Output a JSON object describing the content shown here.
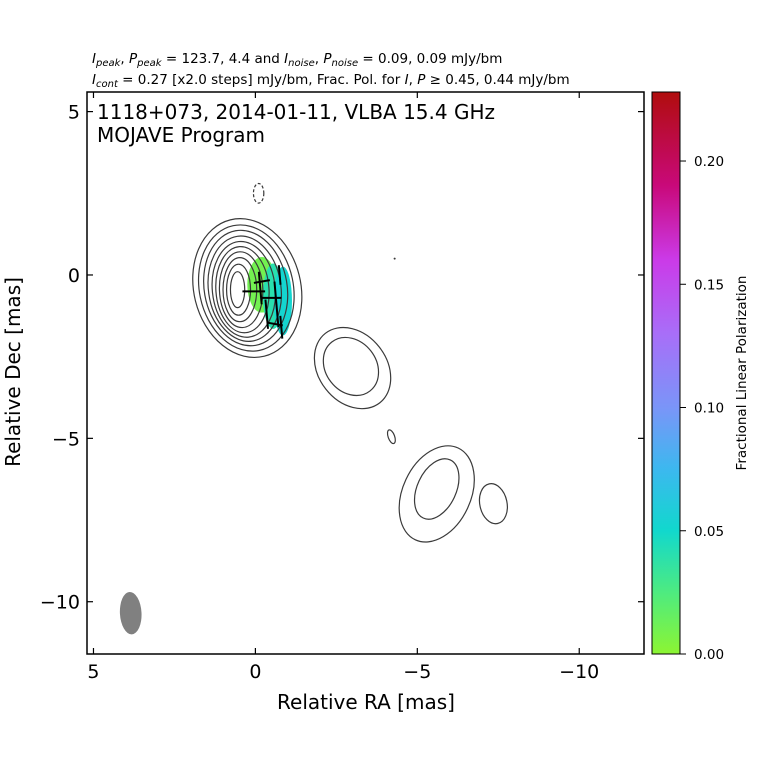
{
  "header": {
    "line1": {
      "i_peak_sym": "I",
      "i_peak_sub": "peak",
      "p_peak_sym": "P",
      "p_peak_sub": "peak",
      "peak_vals": "= 123.7, 4.4 and",
      "i_noise_sym": "I",
      "i_noise_sub": "noise",
      "p_noise_sym": "P",
      "p_noise_sub": "noise",
      "noise_vals": "= 0.09, 0.09 mJy/bm"
    },
    "line2": {
      "i_cont_sym": "I",
      "i_cont_sub": "cont",
      "cont_text": "= 0.27 [x2.0 steps] mJy/bm, Frac. Pol. for",
      "i_sym": "I",
      "p_sym": "P",
      "thresh_text": "≥ 0.45, 0.44 mJy/bm"
    }
  },
  "inset": {
    "line1": "1118+073, 2014-01-11, VLBA 15.4 GHz",
    "line2": "MOJAVE Program"
  },
  "chart_data": {
    "type": "contour",
    "xlabel": "Relative RA [mas]",
    "ylabel": "Relative Dec [mas]",
    "xlim": [
      5.2,
      -12.0
    ],
    "ylim": [
      -11.6,
      5.6
    ],
    "xticks": [
      5,
      0,
      -5,
      -10
    ],
    "xtick_labels": [
      "5",
      "0",
      "−5",
      "−10"
    ],
    "yticks": [
      5,
      0,
      -5,
      -10
    ],
    "ytick_labels": [
      "5",
      "0",
      "−5",
      "−10"
    ],
    "contour_color": "#3a3a3a",
    "contours": [
      {
        "id": "c-core-1",
        "cx": 0.25,
        "cy": -0.4,
        "rx": 1.65,
        "ry": 2.15,
        "rot": -14
      },
      {
        "id": "c-core-2",
        "cx": 0.28,
        "cy": -0.4,
        "rx": 1.45,
        "ry": 1.95,
        "rot": -12
      },
      {
        "id": "c-core-3",
        "cx": 0.3,
        "cy": -0.4,
        "rx": 1.28,
        "ry": 1.78,
        "rot": -10
      },
      {
        "id": "c-core-4",
        "cx": 0.33,
        "cy": -0.42,
        "rx": 1.12,
        "ry": 1.62,
        "rot": -8
      },
      {
        "id": "c-core-5",
        "cx": 0.36,
        "cy": -0.44,
        "rx": 0.97,
        "ry": 1.47,
        "rot": -6
      },
      {
        "id": "c-core-6",
        "cx": 0.4,
        "cy": -0.45,
        "rx": 0.82,
        "ry": 1.32,
        "rot": -4
      },
      {
        "id": "c-core-7",
        "cx": 0.44,
        "cy": -0.45,
        "rx": 0.67,
        "ry": 1.16,
        "rot": -2
      },
      {
        "id": "c-core-8",
        "cx": 0.48,
        "cy": -0.45,
        "rx": 0.52,
        "ry": 0.98,
        "rot": 0
      },
      {
        "id": "c-core-9",
        "cx": 0.52,
        "cy": -0.45,
        "rx": 0.37,
        "ry": 0.78,
        "rot": 0
      },
      {
        "id": "c-core-10",
        "cx": 0.55,
        "cy": -0.45,
        "rx": 0.22,
        "ry": 0.55,
        "rot": 0
      },
      {
        "id": "c-jet1-outer",
        "cx": -3.0,
        "cy": -2.85,
        "rx": 1.05,
        "ry": 1.35,
        "rot": -38
      },
      {
        "id": "c-jet1-inner",
        "cx": -2.95,
        "cy": -2.8,
        "rx": 0.78,
        "ry": 0.95,
        "rot": -38
      },
      {
        "id": "c-jet2-outer",
        "cx": -5.6,
        "cy": -6.7,
        "rx": 1.05,
        "ry": 1.55,
        "rot": 25
      },
      {
        "id": "c-jet2-inner",
        "cx": -5.6,
        "cy": -6.55,
        "rx": 0.6,
        "ry": 0.98,
        "rot": 25
      },
      {
        "id": "c-jet3",
        "cx": -7.35,
        "cy": -7.0,
        "rx": 0.42,
        "ry": 0.62,
        "rot": -12
      },
      {
        "id": "c-blob-small",
        "cx": -4.2,
        "cy": -4.95,
        "rx": 0.1,
        "ry": 0.22,
        "rot": -20
      }
    ],
    "neg_contours": [
      {
        "id": "c-neg-1",
        "cx": -0.1,
        "cy": 2.5,
        "rx": 0.16,
        "ry": 0.3,
        "rot": 0
      }
    ],
    "point_marks": [
      {
        "id": "dot-noise",
        "x": -4.3,
        "y": 0.5
      }
    ],
    "fracpol_patches": [
      {
        "id": "pol-patch-east",
        "cx": -0.2,
        "cy": -0.3,
        "rx": 0.45,
        "ry": 0.85,
        "value": 0.01
      },
      {
        "id": "pol-patch-mid",
        "cx": -0.55,
        "cy": -0.65,
        "rx": 0.32,
        "ry": 1.0,
        "value": 0.04
      },
      {
        "id": "pol-patch-west",
        "cx": -0.85,
        "cy": -0.8,
        "rx": 0.28,
        "ry": 1.05,
        "value": 0.052
      }
    ],
    "evpa_ticks": [
      {
        "x": 0.05,
        "y": -0.5,
        "angle": 90,
        "len": 0.7
      },
      {
        "x": -0.5,
        "y": -0.7,
        "angle": 90,
        "len": 0.6
      },
      {
        "x": -0.2,
        "y": -0.2,
        "angle": 100,
        "len": 0.5
      },
      {
        "x": -0.15,
        "y": -0.4,
        "angle": 5,
        "len": 1.0
      },
      {
        "x": -0.35,
        "y": -1.2,
        "angle": 5,
        "len": 0.9
      },
      {
        "x": -0.65,
        "y": -0.9,
        "angle": 5,
        "len": 1.4
      },
      {
        "x": -0.75,
        "y": 0.0,
        "angle": 5,
        "len": 0.6
      },
      {
        "x": -0.8,
        "y": -1.6,
        "angle": 5,
        "len": 0.7
      },
      {
        "x": -0.6,
        "y": -1.5,
        "angle": 80,
        "len": 0.5
      }
    ],
    "beam": {
      "x": 3.85,
      "y": -10.35,
      "bmaj": 1.3,
      "bmin": 0.58,
      "pa": -3,
      "color": "#808080"
    },
    "colorbar": {
      "label": "Fractional Linear Polarization",
      "min": 0.0,
      "max": 0.228,
      "ticks": [
        0.0,
        0.05,
        0.1,
        0.15,
        0.2
      ],
      "tick_labels": [
        "0.00",
        "0.05",
        "0.10",
        "0.15",
        "0.20"
      ],
      "stops": [
        {
          "v": 0.0,
          "color": "#8cf532"
        },
        {
          "v": 0.025,
          "color": "#4eeb80"
        },
        {
          "v": 0.05,
          "color": "#11d8cd"
        },
        {
          "v": 0.075,
          "color": "#3cb8ef"
        },
        {
          "v": 0.1,
          "color": "#7a95f8"
        },
        {
          "v": 0.13,
          "color": "#a86ef8"
        },
        {
          "v": 0.16,
          "color": "#cb3ae8"
        },
        {
          "v": 0.19,
          "color": "#c9097a"
        },
        {
          "v": 0.228,
          "color": "#b00d0d"
        }
      ]
    }
  }
}
